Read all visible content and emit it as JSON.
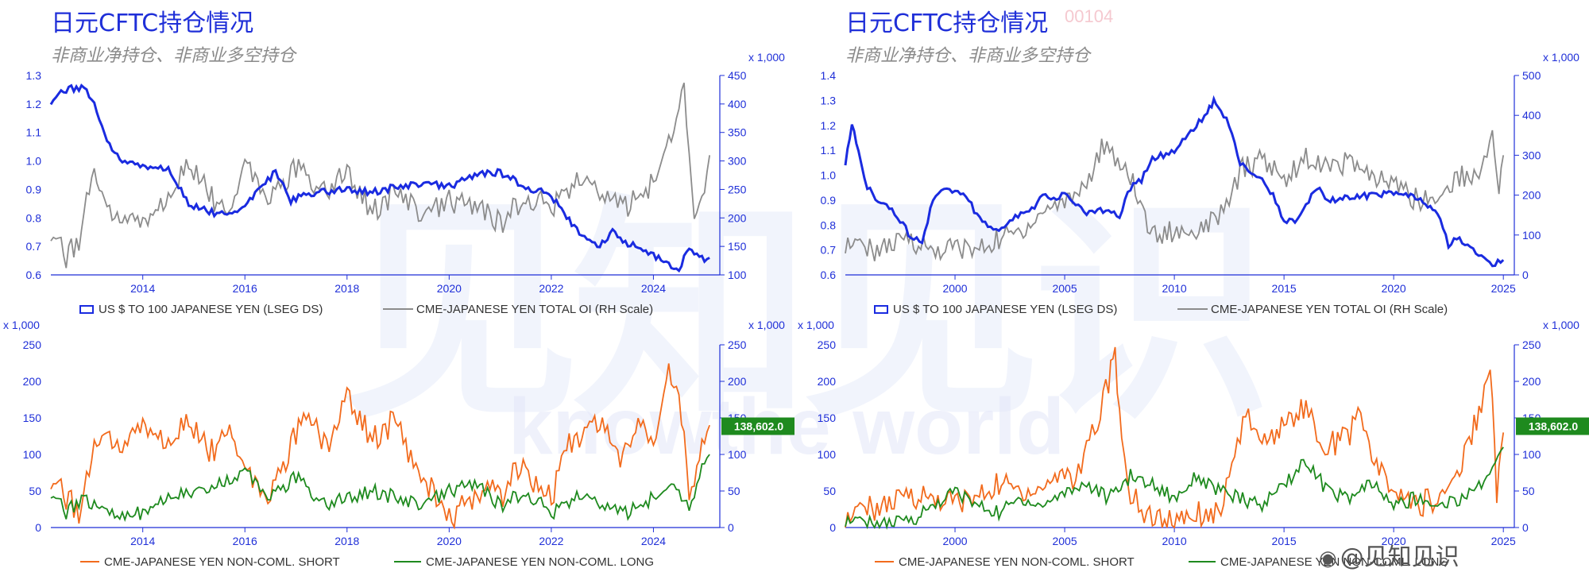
{
  "watermark": {
    "brand": "见知见识",
    "url": "knowthe world",
    "weibo_label": "@见知见识",
    "faint_id": "00104"
  },
  "colors": {
    "title": "#1f2fd8",
    "axis": "#1f2fd8",
    "usdjpy": "#1a2be0",
    "oi": "#8c8c8c",
    "short": "#f26b1d",
    "long": "#1e8a1e",
    "badge": "#1e8a1e"
  },
  "panels": [
    {
      "title": "日元CFTC持仓情况",
      "subtitle": "非商业净持仓、非商业多空持仓",
      "top_legend": {
        "usdjpy": "US $ TO 100 JAPANESE YEN (LSEG DS)",
        "oi": "CME-JAPANESE YEN TOTAL OI (RH Scale)"
      },
      "bottom_legend": {
        "short": "CME-JAPANESE YEN NON-COML. SHORT",
        "long": "CME-JAPANESE YEN NON-COML. LONG"
      },
      "badge": "138,602.0"
    },
    {
      "title": "日元CFTC持仓情况",
      "subtitle": "非商业净持仓、非商业多空持仓",
      "top_legend": {
        "usdjpy": "US $ TO 100 JAPANESE YEN (LSEG DS)",
        "oi": "CME-JAPANESE YEN TOTAL OI (RH Scale)"
      },
      "bottom_legend": {
        "short": "CME-JAPANESE YEN NON-COML. SHORT",
        "long": "CME-JAPANESE YEN NON-COML. LONG"
      },
      "badge": "138,602.0"
    }
  ],
  "chart_data": [
    {
      "type": "line",
      "x_ticks": [
        "2014",
        "2016",
        "2018",
        "2020",
        "2022",
        "2024"
      ],
      "xlim": [
        2012.2,
        2025.3
      ],
      "left_axis": {
        "ticks": [
          "0.6",
          "0.7",
          "0.8",
          "0.9",
          "1.0",
          "1.1",
          "1.2",
          "1.3"
        ],
        "ylim": [
          0.6,
          1.3
        ]
      },
      "right_axis": {
        "ticks": [
          "100",
          "150",
          "200",
          "250",
          "300",
          "350",
          "400",
          "450"
        ],
        "ylim": [
          100,
          450
        ],
        "unit_label": "x 1,000"
      },
      "series": [
        {
          "name": "US $ TO 100 JAPANESE YEN (LSEG DS)",
          "axis": "left",
          "x": [
            2012.2,
            2012.5,
            2012.8,
            2013.0,
            2013.3,
            2013.6,
            2014.0,
            2014.5,
            2014.9,
            2015.3,
            2015.7,
            2016.0,
            2016.3,
            2016.6,
            2016.9,
            2017.0,
            2017.5,
            2018.0,
            2018.5,
            2019.0,
            2019.5,
            2020.0,
            2020.5,
            2021.0,
            2021.5,
            2022.0,
            2022.3,
            2022.7,
            2022.9,
            2023.2,
            2023.5,
            2023.9,
            2024.3,
            2024.5,
            2024.7,
            2025.0,
            2025.1
          ],
          "y": [
            1.21,
            1.25,
            1.26,
            1.22,
            1.07,
            1.0,
            0.98,
            0.97,
            0.85,
            0.82,
            0.81,
            0.84,
            0.91,
            0.96,
            0.86,
            0.87,
            0.89,
            0.9,
            0.89,
            0.91,
            0.92,
            0.91,
            0.95,
            0.96,
            0.91,
            0.88,
            0.8,
            0.72,
            0.7,
            0.75,
            0.71,
            0.68,
            0.64,
            0.62,
            0.7,
            0.65,
            0.66
          ]
        },
        {
          "name": "CME-JAPANESE YEN TOTAL OI (RH Scale)",
          "axis": "right",
          "x": [
            2012.2,
            2012.5,
            2012.8,
            2013.0,
            2013.3,
            2013.6,
            2014.0,
            2014.5,
            2014.9,
            2015.3,
            2015.7,
            2016.0,
            2016.5,
            2017.0,
            2017.5,
            2018.0,
            2018.5,
            2019.0,
            2019.5,
            2020.0,
            2020.5,
            2021.0,
            2021.5,
            2022.0,
            2022.5,
            2023.0,
            2023.5,
            2024.0,
            2024.3,
            2024.6,
            2024.8,
            2025.0,
            2025.1
          ],
          "y": [
            180,
            130,
            170,
            280,
            220,
            200,
            190,
            230,
            300,
            240,
            200,
            300,
            230,
            290,
            240,
            280,
            210,
            250,
            200,
            230,
            220,
            190,
            240,
            220,
            260,
            240,
            220,
            260,
            340,
            420,
            200,
            250,
            310
          ]
        },
        {
          "name": "CME-JAPANESE YEN NON-COML. SHORT",
          "axis": "left_bottom",
          "x": [
            2012.2,
            2012.5,
            2012.8,
            2013.0,
            2013.3,
            2013.6,
            2014.0,
            2014.5,
            2014.9,
            2015.3,
            2015.7,
            2016.0,
            2016.5,
            2017.0,
            2017.3,
            2017.6,
            2018.0,
            2018.5,
            2019.0,
            2019.3,
            2019.7,
            2020.0,
            2020.4,
            2020.8,
            2021.0,
            2021.4,
            2021.8,
            2022.0,
            2022.3,
            2022.7,
            2023.0,
            2023.3,
            2023.7,
            2024.0,
            2024.3,
            2024.5,
            2024.7,
            2025.0,
            2025.1
          ],
          "y": [
            70,
            40,
            20,
            100,
            130,
            110,
            140,
            110,
            150,
            100,
            130,
            80,
            40,
            130,
            150,
            110,
            180,
            120,
            150,
            80,
            50,
            10,
            40,
            60,
            40,
            90,
            50,
            40,
            110,
            130,
            150,
            90,
            140,
            110,
            220,
            190,
            50,
            120,
            140
          ]
        },
        {
          "name": "CME-JAPANESE YEN NON-COML. LONG",
          "axis": "left_bottom",
          "x": [
            2012.2,
            2012.5,
            2012.8,
            2013.0,
            2013.5,
            2014.0,
            2014.5,
            2015.0,
            2015.5,
            2016.0,
            2016.5,
            2017.0,
            2017.5,
            2018.0,
            2018.5,
            2019.0,
            2019.5,
            2020.0,
            2020.5,
            2021.0,
            2021.5,
            2022.0,
            2022.5,
            2023.0,
            2023.5,
            2024.0,
            2024.4,
            2024.7,
            2025.0,
            2025.1
          ],
          "y": [
            50,
            20,
            40,
            30,
            20,
            20,
            40,
            50,
            60,
            80,
            40,
            70,
            30,
            40,
            50,
            40,
            30,
            50,
            60,
            30,
            50,
            20,
            40,
            30,
            20,
            40,
            60,
            30,
            90,
            100
          ]
        }
      ],
      "bottom_axes": {
        "left": {
          "ticks": [
            "0",
            "50",
            "100",
            "150",
            "200",
            "250"
          ],
          "ylim": [
            0,
            250
          ],
          "unit_label": "x 1,000"
        },
        "right": {
          "ticks": [
            "0",
            "50",
            "100",
            "150",
            "200",
            "250"
          ],
          "ylim": [
            0,
            250
          ],
          "unit_label": "x 1,000"
        }
      }
    },
    {
      "type": "line",
      "x_ticks": [
        "2000",
        "2005",
        "2010",
        "2015",
        "2020",
        "2025"
      ],
      "xlim": [
        1995.0,
        2025.5
      ],
      "left_axis": {
        "ticks": [
          "0.6",
          "0.7",
          "0.8",
          "0.9",
          "1.0",
          "1.1",
          "1.2",
          "1.3",
          "1.4"
        ],
        "ylim": [
          0.6,
          1.4
        ]
      },
      "right_axis": {
        "ticks": [
          "0",
          "100",
          "200",
          "300",
          "400",
          "500"
        ],
        "ylim": [
          0,
          500
        ],
        "unit_label": "x 1,000"
      },
      "series": [
        {
          "name": "US $ TO 100 JAPANESE YEN (LSEG DS)",
          "axis": "left",
          "x": [
            1995.0,
            1995.3,
            1995.6,
            1996.0,
            1996.5,
            1997.0,
            1997.5,
            1998.0,
            1998.5,
            1999.0,
            1999.5,
            2000.0,
            2000.5,
            2001.0,
            2001.5,
            2002.0,
            2002.5,
            2003.0,
            2003.5,
            2004.0,
            2004.5,
            2005.0,
            2005.5,
            2006.0,
            2006.5,
            2007.0,
            2007.5,
            2008.0,
            2008.5,
            2009.0,
            2009.5,
            2010.0,
            2010.5,
            2011.0,
            2011.5,
            2011.8,
            2012.0,
            2012.5,
            2013.0,
            2013.5,
            2014.0,
            2014.5,
            2015.0,
            2015.5,
            2016.0,
            2016.5,
            2017.0,
            2018.0,
            2019.0,
            2020.0,
            2021.0,
            2022.0,
            2022.5,
            2023.0,
            2023.5,
            2024.0,
            2024.5,
            2025.0
          ],
          "y": [
            1.05,
            1.2,
            1.1,
            0.95,
            0.9,
            0.87,
            0.82,
            0.75,
            0.74,
            0.9,
            0.95,
            0.93,
            0.92,
            0.84,
            0.8,
            0.78,
            0.82,
            0.84,
            0.86,
            0.93,
            0.9,
            0.93,
            0.88,
            0.85,
            0.86,
            0.86,
            0.84,
            0.95,
            0.98,
            1.07,
            1.08,
            1.1,
            1.15,
            1.2,
            1.25,
            1.3,
            1.28,
            1.2,
            1.05,
            1.0,
            0.98,
            0.92,
            0.82,
            0.82,
            0.88,
            0.95,
            0.9,
            0.91,
            0.92,
            0.93,
            0.91,
            0.85,
            0.72,
            0.75,
            0.7,
            0.68,
            0.64,
            0.66
          ]
        },
        {
          "name": "CME-JAPANESE YEN TOTAL OI (RH Scale)",
          "axis": "right",
          "x": [
            1995.0,
            1996.0,
            1997.0,
            1998.0,
            1999.0,
            2000.0,
            2001.0,
            2002.0,
            2003.0,
            2004.0,
            2005.0,
            2006.0,
            2006.8,
            2007.3,
            2008.0,
            2009.0,
            2010.0,
            2011.0,
            2012.0,
            2012.5,
            2013.0,
            2014.0,
            2015.0,
            2016.0,
            2017.0,
            2018.0,
            2019.0,
            2020.0,
            2021.0,
            2022.0,
            2023.0,
            2024.0,
            2024.5,
            2024.8,
            2025.0
          ],
          "y": [
            80,
            60,
            70,
            90,
            60,
            70,
            60,
            90,
            110,
            160,
            190,
            230,
            330,
            300,
            240,
            100,
            110,
            120,
            140,
            170,
            260,
            290,
            240,
            300,
            260,
            290,
            240,
            230,
            190,
            190,
            250,
            250,
            380,
            220,
            300
          ]
        },
        {
          "name": "CME-JAPANESE YEN NON-COML. SHORT",
          "axis": "left_bottom",
          "x": [
            1995.0,
            1996.0,
            1997.0,
            1998.0,
            1999.0,
            2000.0,
            2001.0,
            2002.0,
            2003.0,
            2004.0,
            2005.0,
            2005.5,
            2006.0,
            2006.5,
            2007.0,
            2007.3,
            2007.6,
            2008.0,
            2008.5,
            2009.0,
            2010.0,
            2011.0,
            2012.0,
            2012.5,
            2013.0,
            2013.5,
            2014.0,
            2015.0,
            2016.0,
            2016.5,
            2017.0,
            2018.0,
            2018.5,
            2019.0,
            2020.0,
            2021.0,
            2022.0,
            2023.0,
            2024.0,
            2024.4,
            2024.7,
            2025.0
          ],
          "y": [
            10,
            25,
            30,
            45,
            40,
            35,
            40,
            60,
            50,
            55,
            80,
            60,
            120,
            150,
            200,
            240,
            120,
            50,
            20,
            10,
            15,
            20,
            20,
            60,
            130,
            150,
            110,
            140,
            170,
            120,
            110,
            130,
            160,
            90,
            50,
            30,
            40,
            80,
            170,
            220,
            40,
            130
          ]
        },
        {
          "name": "CME-JAPANESE YEN NON-COML. LONG",
          "axis": "left_bottom",
          "x": [
            1995.0,
            1996.0,
            1997.0,
            1998.0,
            1999.0,
            2000.0,
            2001.0,
            2002.0,
            2003.0,
            2004.0,
            2005.0,
            2006.0,
            2007.0,
            2008.0,
            2009.0,
            2010.0,
            2011.0,
            2012.0,
            2013.0,
            2014.0,
            2015.0,
            2016.0,
            2017.0,
            2018.0,
            2019.0,
            2020.0,
            2021.0,
            2022.0,
            2023.0,
            2024.0,
            2024.5,
            2025.0
          ],
          "y": [
            10,
            5,
            5,
            10,
            30,
            50,
            30,
            20,
            40,
            30,
            50,
            60,
            40,
            70,
            60,
            40,
            70,
            50,
            40,
            30,
            60,
            90,
            50,
            40,
            60,
            30,
            40,
            30,
            40,
            60,
            90,
            110
          ]
        }
      ],
      "bottom_axes": {
        "left": {
          "ticks": [
            "0",
            "50",
            "100",
            "150",
            "200",
            "250"
          ],
          "ylim": [
            0,
            250
          ],
          "unit_label": "x 1,000"
        },
        "right": {
          "ticks": [
            "0",
            "50",
            "100",
            "150",
            "200",
            "250"
          ],
          "ylim": [
            0,
            250
          ],
          "unit_label": "x 1,000"
        }
      }
    }
  ]
}
